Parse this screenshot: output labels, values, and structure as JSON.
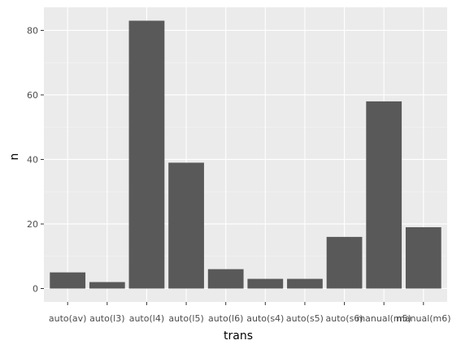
{
  "chart_data": {
    "type": "bar",
    "categories": [
      "auto(av)",
      "auto(l3)",
      "auto(l4)",
      "auto(l5)",
      "auto(l6)",
      "auto(s4)",
      "auto(s5)",
      "auto(s6)",
      "manual(m5)",
      "manual(m6)"
    ],
    "values": [
      5,
      2,
      83,
      39,
      6,
      3,
      3,
      16,
      58,
      19
    ],
    "xlabel": "trans",
    "ylabel": "n",
    "ylim": [
      -4.15,
      87.15
    ],
    "yticks": [
      0,
      20,
      40,
      60,
      80
    ],
    "grid": true,
    "colors": {
      "bar": "#595959",
      "panel": "#ebebeb",
      "grid_major": "#ffffff",
      "grid_minor": "#f4f4f4",
      "tick_mark": "#333333"
    }
  }
}
